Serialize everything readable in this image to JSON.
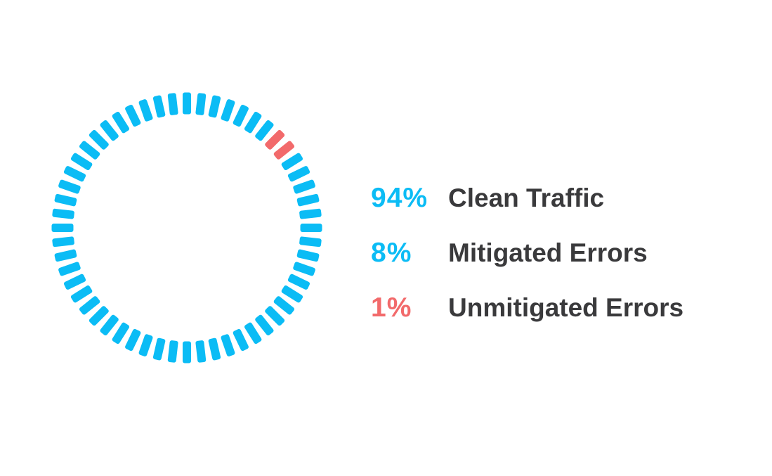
{
  "colors": {
    "clean": "#0bbcf5",
    "mitigated": "#0bbcf5",
    "unmitigated": "#f26a6b",
    "label": "#3a3a3c"
  },
  "chart_data": {
    "type": "pie",
    "style": "segmented-ring",
    "segment_count": 56,
    "red_segments": [
      7,
      8
    ],
    "series": [
      {
        "key": "clean",
        "value": "94%",
        "label": "Clean Traffic"
      },
      {
        "key": "mitigated",
        "value": "8%",
        "label": "Mitigated Errors"
      },
      {
        "key": "unmitigated",
        "value": "1%",
        "label": "Unmitigated Errors"
      }
    ]
  }
}
